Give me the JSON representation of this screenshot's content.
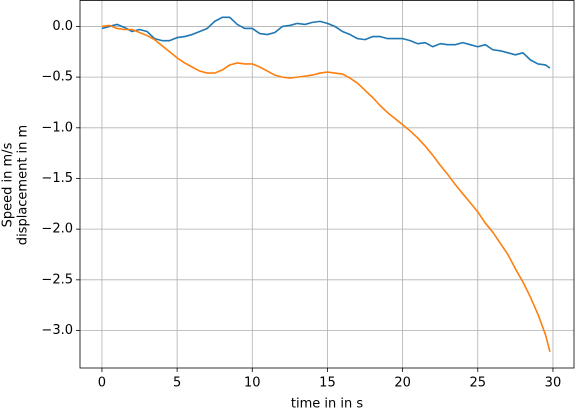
{
  "chart_data": {
    "type": "line",
    "xlabel": "time in in s",
    "ylabel": [
      "Speed in m/s",
      "displacement in m"
    ],
    "x": [
      0,
      0.5,
      1,
      1.5,
      2,
      2.5,
      3,
      3.5,
      4,
      4.5,
      5,
      5.5,
      6,
      6.5,
      7,
      7.5,
      8,
      8.5,
      9,
      9.5,
      10,
      10.5,
      11,
      11.5,
      12,
      12.5,
      13,
      13.5,
      14,
      14.5,
      15,
      15.5,
      16,
      16.5,
      17,
      17.5,
      18,
      18.5,
      19,
      19.5,
      20,
      20.5,
      21,
      21.5,
      22,
      22.5,
      23,
      23.5,
      24,
      24.5,
      25,
      25.5,
      26,
      26.5,
      27,
      27.5,
      28,
      28.5,
      29,
      29.5,
      29.8
    ],
    "series": [
      {
        "color": "#1f77b4",
        "values": [
          -0.02,
          0.0,
          0.02,
          -0.01,
          -0.05,
          -0.03,
          -0.05,
          -0.12,
          -0.14,
          -0.14,
          -0.11,
          -0.1,
          -0.08,
          -0.05,
          -0.02,
          0.05,
          0.09,
          0.09,
          0.02,
          -0.02,
          -0.02,
          -0.07,
          -0.08,
          -0.06,
          0.0,
          0.01,
          0.03,
          0.02,
          0.04,
          0.05,
          0.03,
          0.0,
          -0.05,
          -0.08,
          -0.12,
          -0.13,
          -0.1,
          -0.1,
          -0.12,
          -0.12,
          -0.12,
          -0.14,
          -0.17,
          -0.16,
          -0.2,
          -0.17,
          -0.18,
          -0.18,
          -0.16,
          -0.18,
          -0.2,
          -0.18,
          -0.23,
          -0.24,
          -0.26,
          -0.28,
          -0.26,
          -0.33,
          -0.37,
          -0.38,
          -0.41
        ]
      },
      {
        "color": "#ff7f0e",
        "values": [
          0.0,
          0.01,
          -0.02,
          -0.03,
          -0.03,
          -0.06,
          -0.09,
          -0.13,
          -0.19,
          -0.25,
          -0.31,
          -0.36,
          -0.4,
          -0.44,
          -0.46,
          -0.46,
          -0.43,
          -0.38,
          -0.36,
          -0.37,
          -0.37,
          -0.4,
          -0.44,
          -0.48,
          -0.5,
          -0.51,
          -0.5,
          -0.49,
          -0.48,
          -0.46,
          -0.45,
          -0.46,
          -0.47,
          -0.51,
          -0.56,
          -0.63,
          -0.7,
          -0.78,
          -0.85,
          -0.91,
          -0.97,
          -1.03,
          -1.1,
          -1.18,
          -1.27,
          -1.37,
          -1.46,
          -1.56,
          -1.65,
          -1.74,
          -1.83,
          -1.94,
          -2.03,
          -2.14,
          -2.25,
          -2.39,
          -2.52,
          -2.67,
          -2.84,
          -3.04,
          -3.21
        ]
      }
    ],
    "xlim": [
      -1.46,
      31.4
    ],
    "ylim": [
      -3.37,
      0.256
    ],
    "xticks": [
      0,
      5,
      10,
      15,
      20,
      25,
      30
    ],
    "yticks": [
      {
        "value": 0,
        "label": "0.0"
      },
      {
        "value": -0.5,
        "label": "−0.5"
      },
      {
        "value": -1,
        "label": "−1.0"
      },
      {
        "value": -1.5,
        "label": "−1.5"
      },
      {
        "value": -2,
        "label": "−2.0"
      },
      {
        "value": -2.5,
        "label": "−2.5"
      },
      {
        "value": -3,
        "label": "−3.0"
      }
    ],
    "grid": true
  }
}
